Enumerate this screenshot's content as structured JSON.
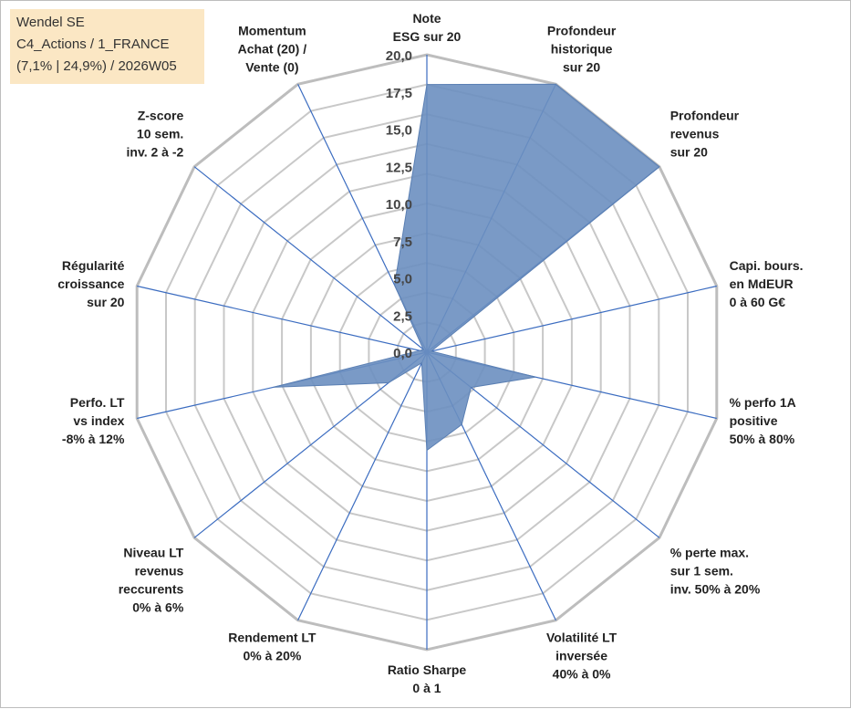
{
  "info_box": {
    "line1": "Wendel SE",
    "line2": "C4_Actions / 1_FRANCE",
    "line3": "(7,1% | 24,9%) / 2026W05"
  },
  "colors": {
    "fill": "#6b8fc0",
    "fill_stroke": "#5a7fb3",
    "spoke": "#3b6cc0",
    "ring": "#c8c8c8",
    "outer_ring": "#bdbdbd"
  },
  "chart_data": {
    "type": "radar",
    "title": "",
    "rmin": 0,
    "rmax": 20,
    "ticks": [
      "0,0",
      "2,5",
      "5,0",
      "7,5",
      "10,0",
      "12,5",
      "15,0",
      "17,5",
      "20,0"
    ],
    "tick_values": [
      0,
      2.5,
      5,
      7.5,
      10,
      12.5,
      15,
      17.5,
      20
    ],
    "rings": 10,
    "grid": true,
    "legend": "none",
    "axes": [
      {
        "lines": [
          "Note",
          "ESG sur 20"
        ],
        "value": 18
      },
      {
        "lines": [
          "Profondeur",
          "historique",
          "sur 20"
        ],
        "value": 20
      },
      {
        "lines": [
          "Profondeur",
          "revenus",
          "sur 20"
        ],
        "value": 20
      },
      {
        "lines": [
          "Capi. bours.",
          "en MdEUR",
          "0 à 60 G€"
        ],
        "value": 0.3
      },
      {
        "lines": [
          "% perfo 1A",
          "positive",
          "50% à 80%"
        ],
        "value": 7.5
      },
      {
        "lines": [
          "% perte max.",
          "sur 1 sem.",
          "inv. 50% à 20%"
        ],
        "value": 3.8
      },
      {
        "lines": [
          "Volatilité LT",
          "inversée",
          "40% à 0%"
        ],
        "value": 5.4
      },
      {
        "lines": [
          "Ratio Sharpe",
          "0 à 1"
        ],
        "value": 6.6
      },
      {
        "lines": [
          "Rendement LT",
          "0% à 20%"
        ],
        "value": 0.8
      },
      {
        "lines": [
          "Niveau LT",
          "revenus",
          "reccurents",
          "0% à 6%"
        ],
        "value": 3.3
      },
      {
        "lines": [
          "Perfo. LT",
          "vs index",
          "-8% à 12%"
        ],
        "value": 10.6
      },
      {
        "lines": [
          "Régularité",
          "croissance",
          "sur 20"
        ],
        "value": 0.5
      },
      {
        "lines": [
          "Z-score",
          "10 sem.",
          "inv. 2 à -2"
        ],
        "value": 0.3
      },
      {
        "lines": [
          "Momentum",
          "Achat (20) /",
          "Vente (0)"
        ],
        "value": 5
      }
    ]
  }
}
